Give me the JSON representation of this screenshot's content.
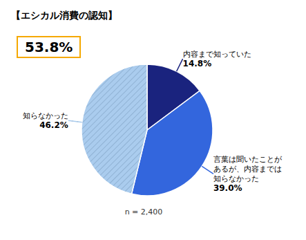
{
  "chart_data": {
    "type": "pie",
    "title": "【エシカル消費の認知】",
    "categories": [
      "内容まで知っていた",
      "言葉は聞いたことが\nあるが、内容までは\n知らなかった",
      "知らなかった"
    ],
    "values": [
      14.8,
      39.0,
      46.2
    ],
    "value_labels": [
      "14.8%",
      "39.0%",
      "46.2%"
    ],
    "colors": [
      "#1a237e",
      "#3366dd",
      "#aaccee"
    ],
    "data_labels": true,
    "annotations": [
      "53.8%",
      "n = 2,400"
    ]
  }
}
